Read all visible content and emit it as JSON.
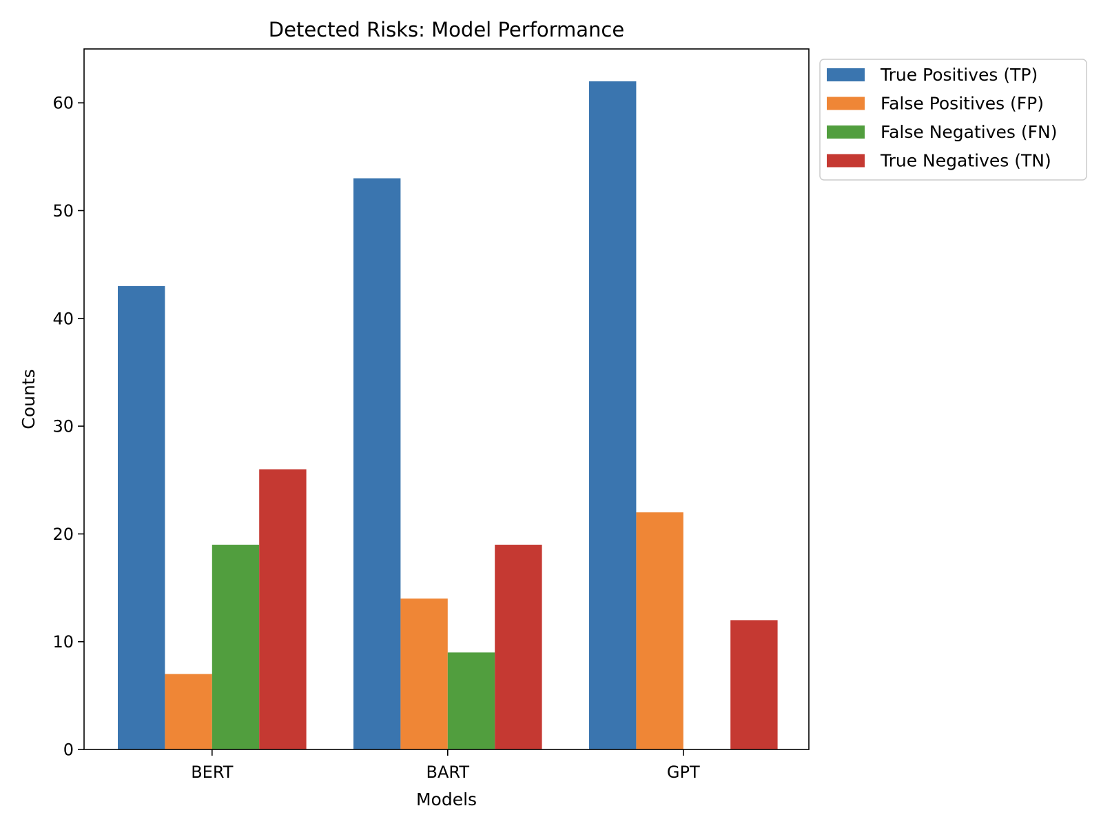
{
  "chart_data": {
    "type": "bar",
    "title": "Detected Risks: Model Performance",
    "xlabel": "Models",
    "ylabel": "Counts",
    "categories": [
      "BERT",
      "BART",
      "GPT"
    ],
    "ylim": [
      0,
      65
    ],
    "yticks": [
      0,
      10,
      20,
      30,
      40,
      50,
      60
    ],
    "grid": false,
    "legend_position": "outside-top-right",
    "series": [
      {
        "name": "True Positives (TP)",
        "color": "#3a75af",
        "values": [
          43,
          53,
          62
        ]
      },
      {
        "name": "False Positives (FP)",
        "color": "#ef8636",
        "values": [
          7,
          14,
          22
        ]
      },
      {
        "name": "False Negatives (FN)",
        "color": "#519e3e",
        "values": [
          19,
          9,
          0
        ]
      },
      {
        "name": "True Negatives (TN)",
        "color": "#c53932",
        "values": [
          26,
          19,
          12
        ]
      }
    ]
  }
}
